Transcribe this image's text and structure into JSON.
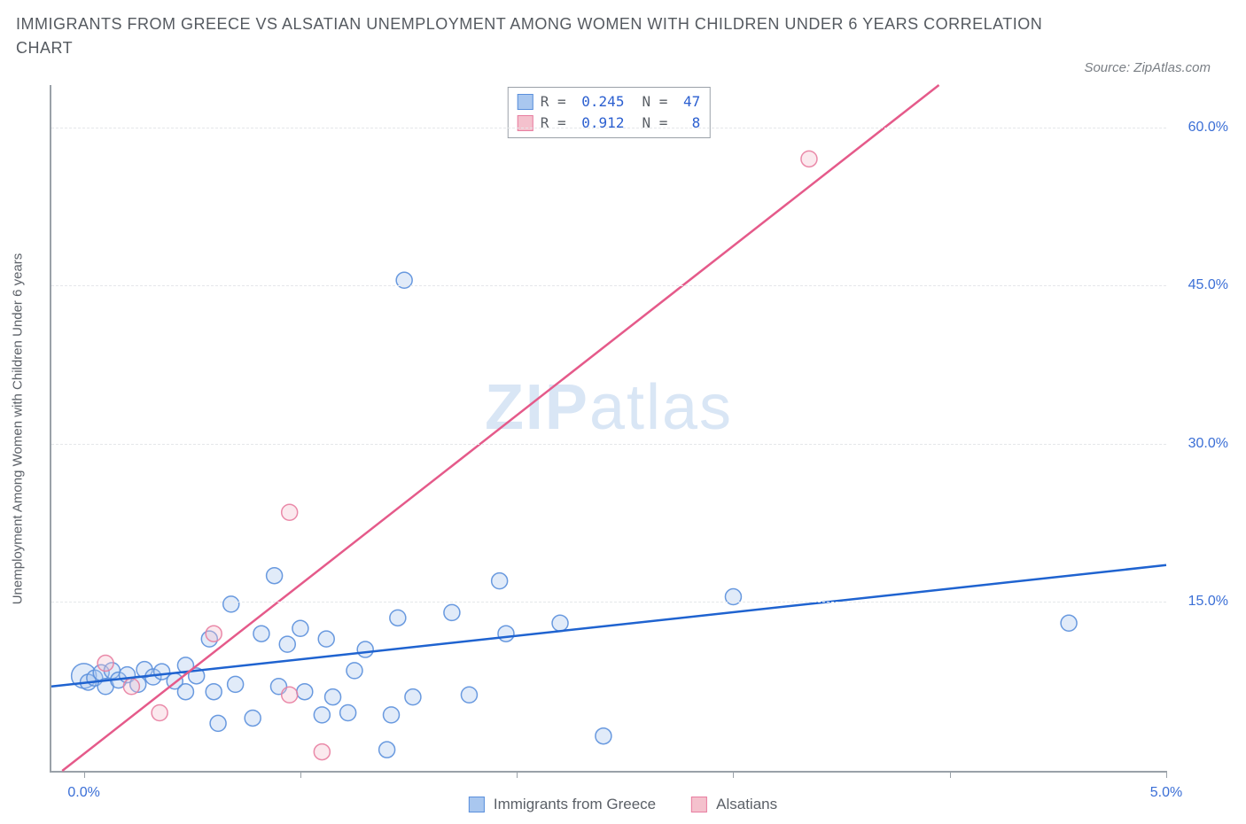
{
  "title": "IMMIGRANTS FROM GREECE VS ALSATIAN UNEMPLOYMENT AMONG WOMEN WITH CHILDREN UNDER 6 YEARS CORRELATION CHART",
  "source": "Source: ZipAtlas.com",
  "watermark_bold": "ZIP",
  "watermark_light": "atlas",
  "y_axis_title": "Unemployment Among Women with Children Under 6 years",
  "chart": {
    "type": "scatter",
    "background_color": "#ffffff",
    "grid_color": "#e5e7ea",
    "axis_color": "#9aa1a8",
    "tick_label_color": "#3b6fd6",
    "tick_fontsize": 16,
    "xlim": [
      -0.15,
      5.0
    ],
    "ylim": [
      -1.0,
      64.0
    ],
    "x_ticks": [
      0.0,
      1.0,
      2.0,
      3.0,
      4.0,
      5.0
    ],
    "x_tick_labels": {
      "0": "0.0%",
      "5": "5.0%"
    },
    "y_gridlines": [
      15.0,
      30.0,
      45.0,
      60.0
    ],
    "y_tick_labels": {
      "15": "15.0%",
      "30": "30.0%",
      "45": "45.0%",
      "60": "60.0%"
    },
    "marker_radius": 9,
    "marker_fill_opacity": 0.35,
    "marker_stroke_opacity": 0.9,
    "line_width": 2.5,
    "series": [
      {
        "id": "greece",
        "label": "Immigrants from Greece",
        "color_fill": "#a9c7ef",
        "color_stroke": "#5a8fdc",
        "line_color": "#1f63d0",
        "R": "0.245",
        "N": "47",
        "trend_line": {
          "x1": -0.15,
          "y1": 7.0,
          "x2": 5.0,
          "y2": 18.5
        },
        "points": [
          {
            "x": 0.0,
            "y": 8.0,
            "r": 14
          },
          {
            "x": 0.02,
            "y": 7.4
          },
          {
            "x": 0.05,
            "y": 7.8
          },
          {
            "x": 0.08,
            "y": 8.3
          },
          {
            "x": 0.1,
            "y": 7.0
          },
          {
            "x": 0.13,
            "y": 8.5
          },
          {
            "x": 0.16,
            "y": 7.6
          },
          {
            "x": 0.2,
            "y": 8.1
          },
          {
            "x": 0.25,
            "y": 7.2
          },
          {
            "x": 0.28,
            "y": 8.6
          },
          {
            "x": 0.32,
            "y": 7.9
          },
          {
            "x": 0.36,
            "y": 8.4
          },
          {
            "x": 0.42,
            "y": 7.5
          },
          {
            "x": 0.47,
            "y": 9.0
          },
          {
            "x": 0.47,
            "y": 6.5
          },
          {
            "x": 0.52,
            "y": 8.0
          },
          {
            "x": 0.58,
            "y": 11.5
          },
          {
            "x": 0.6,
            "y": 6.5
          },
          {
            "x": 0.62,
            "y": 3.5
          },
          {
            "x": 0.68,
            "y": 14.8
          },
          {
            "x": 0.7,
            "y": 7.2
          },
          {
            "x": 0.78,
            "y": 4.0
          },
          {
            "x": 0.82,
            "y": 12.0
          },
          {
            "x": 0.88,
            "y": 17.5
          },
          {
            "x": 0.9,
            "y": 7.0
          },
          {
            "x": 0.94,
            "y": 11.0
          },
          {
            "x": 1.0,
            "y": 12.5
          },
          {
            "x": 1.02,
            "y": 6.5
          },
          {
            "x": 1.1,
            "y": 4.3
          },
          {
            "x": 1.12,
            "y": 11.5
          },
          {
            "x": 1.15,
            "y": 6.0
          },
          {
            "x": 1.22,
            "y": 4.5
          },
          {
            "x": 1.25,
            "y": 8.5
          },
          {
            "x": 1.3,
            "y": 10.5
          },
          {
            "x": 1.4,
            "y": 1.0
          },
          {
            "x": 1.42,
            "y": 4.3
          },
          {
            "x": 1.45,
            "y": 13.5
          },
          {
            "x": 1.48,
            "y": 45.5
          },
          {
            "x": 1.52,
            "y": 6.0
          },
          {
            "x": 1.7,
            "y": 14.0
          },
          {
            "x": 1.78,
            "y": 6.2
          },
          {
            "x": 1.92,
            "y": 17.0
          },
          {
            "x": 1.95,
            "y": 12.0
          },
          {
            "x": 2.2,
            "y": 13.0
          },
          {
            "x": 2.4,
            "y": 2.3
          },
          {
            "x": 3.0,
            "y": 15.5
          },
          {
            "x": 4.55,
            "y": 13.0
          }
        ]
      },
      {
        "id": "alsatians",
        "label": "Alsatians",
        "color_fill": "#f4c1cd",
        "color_stroke": "#e87da0",
        "line_color": "#e55a8a",
        "R": "0.912",
        "N": "8",
        "trend_line": {
          "x1": -0.1,
          "y1": -1.0,
          "x2": 3.95,
          "y2": 64.0
        },
        "points": [
          {
            "x": 0.1,
            "y": 9.2
          },
          {
            "x": 0.22,
            "y": 7.0
          },
          {
            "x": 0.35,
            "y": 4.5
          },
          {
            "x": 0.6,
            "y": 12.0
          },
          {
            "x": 0.95,
            "y": 6.2
          },
          {
            "x": 0.95,
            "y": 23.5
          },
          {
            "x": 1.1,
            "y": 0.8
          },
          {
            "x": 3.35,
            "y": 57.0
          }
        ]
      }
    ]
  },
  "stats_box": {
    "rows": [
      {
        "swatch_fill": "#a9c7ef",
        "swatch_stroke": "#5a8fdc",
        "r_label": "R =",
        "r_val": "0.245",
        "n_label": "N =",
        "n_val": "47"
      },
      {
        "swatch_fill": "#f4c1cd",
        "swatch_stroke": "#e87da0",
        "r_label": "R =",
        "r_val": "0.912",
        "n_label": "N =",
        "n_val": " 8"
      }
    ]
  },
  "bottom_legend": [
    {
      "swatch_fill": "#a9c7ef",
      "swatch_stroke": "#5a8fdc",
      "label": "Immigrants from Greece"
    },
    {
      "swatch_fill": "#f4c1cd",
      "swatch_stroke": "#e87da0",
      "label": "Alsatians"
    }
  ]
}
